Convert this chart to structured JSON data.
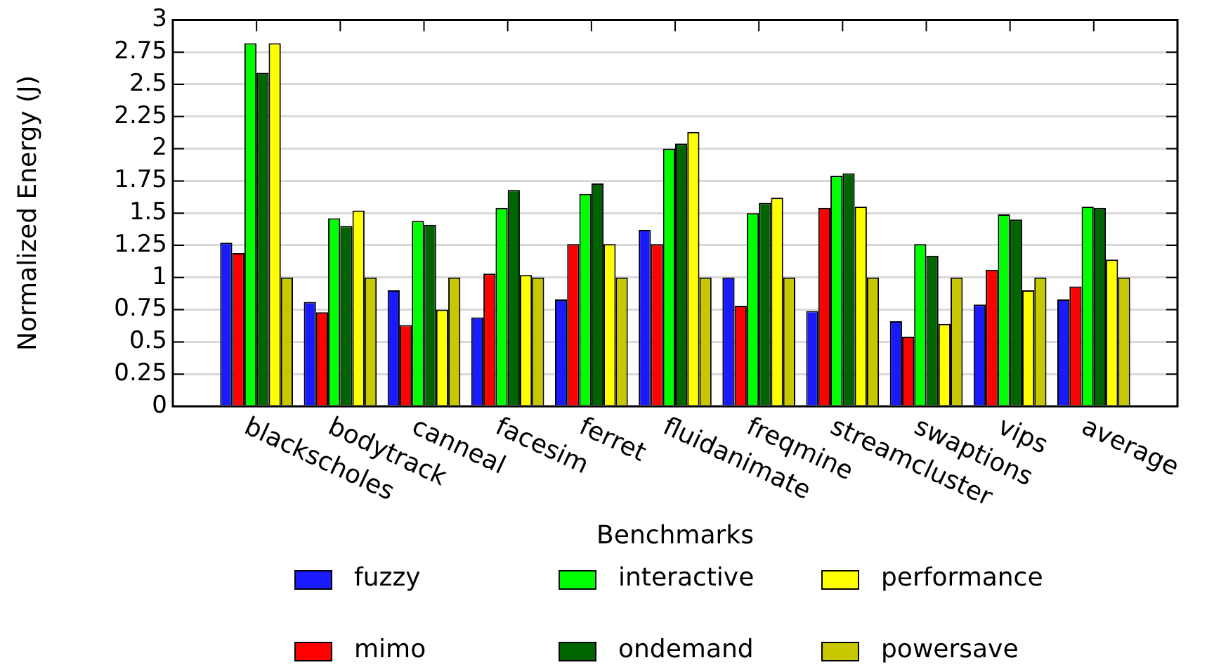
{
  "chart_data": {
    "type": "bar",
    "xlabel": "Benchmarks",
    "ylabel": "Normalized Energy (J)",
    "categories": [
      "blackscholes",
      "bodytrack",
      "canneal",
      "facesim",
      "ferret",
      "fluidanimate",
      "freqmine",
      "streamcluster",
      "swaptions",
      "vips",
      "average"
    ],
    "series": [
      {
        "name": "fuzzy",
        "color": "#1a1aff",
        "values": [
          1.27,
          0.81,
          0.9,
          0.69,
          0.83,
          1.37,
          1.0,
          0.74,
          0.66,
          0.79,
          0.83
        ]
      },
      {
        "name": "mimo",
        "color": "#ff0000",
        "values": [
          1.19,
          0.73,
          0.63,
          1.03,
          1.26,
          1.26,
          0.78,
          1.54,
          0.54,
          1.06,
          0.93
        ]
      },
      {
        "name": "interactive",
        "color": "#00ff00",
        "values": [
          2.82,
          1.46,
          1.44,
          1.54,
          1.65,
          2.0,
          1.5,
          1.79,
          1.26,
          1.49,
          1.55
        ]
      },
      {
        "name": "ondemand",
        "color": "#006400",
        "values": [
          2.59,
          1.4,
          1.41,
          1.68,
          1.73,
          2.04,
          1.58,
          1.81,
          1.17,
          1.45,
          1.54
        ]
      },
      {
        "name": "performance",
        "color": "#ffff00",
        "values": [
          2.82,
          1.52,
          0.75,
          1.02,
          1.26,
          2.13,
          1.62,
          1.55,
          0.64,
          0.9,
          1.14
        ]
      },
      {
        "name": "powersave",
        "color": "#c8c800",
        "values": [
          1.0,
          1.0,
          1.0,
          1.0,
          1.0,
          1.0,
          1.0,
          1.0,
          1.0,
          1.0,
          1.0
        ]
      }
    ],
    "ylim": [
      0,
      3
    ],
    "yticks": [
      0,
      0.25,
      0.5,
      0.75,
      1,
      1.25,
      1.5,
      1.75,
      2,
      2.25,
      2.5,
      2.75,
      3
    ],
    "grid": "y",
    "legend": "bottom"
  }
}
